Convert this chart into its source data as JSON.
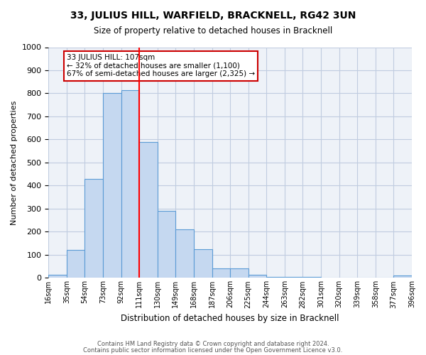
{
  "title": "33, JULIUS HILL, WARFIELD, BRACKNELL, RG42 3UN",
  "subtitle": "Size of property relative to detached houses in Bracknell",
  "xlabel": "Distribution of detached houses by size in Bracknell",
  "ylabel": "Number of detached properties",
  "bin_labels": [
    "16sqm",
    "35sqm",
    "54sqm",
    "73sqm",
    "92sqm",
    "111sqm",
    "130sqm",
    "149sqm",
    "168sqm",
    "187sqm",
    "206sqm",
    "225sqm",
    "244sqm",
    "263sqm",
    "282sqm",
    "301sqm",
    "320sqm",
    "339sqm",
    "358sqm",
    "377sqm",
    "396sqm"
  ],
  "bar_values": [
    15,
    120,
    430,
    800,
    815,
    590,
    290,
    210,
    125,
    40,
    40,
    15,
    5,
    4,
    3,
    2,
    1,
    1,
    0,
    10
  ],
  "bar_color": "#c5d8f0",
  "bar_edge_color": "#5b9bd5",
  "vline_color": "red",
  "ylim": [
    0,
    1000
  ],
  "yticks": [
    0,
    100,
    200,
    300,
    400,
    500,
    600,
    700,
    800,
    900,
    1000
  ],
  "annotation_title": "33 JULIUS HILL: 107sqm",
  "annotation_line1": "← 32% of detached houses are smaller (1,100)",
  "annotation_line2": "67% of semi-detached houses are larger (2,325) →",
  "annotation_box_color": "white",
  "annotation_box_edge_color": "#cc0000",
  "footer1": "Contains HM Land Registry data © Crown copyright and database right 2024.",
  "footer2": "Contains public sector information licensed under the Open Government Licence v3.0.",
  "plot_bg_color": "#eef2f8",
  "fig_bg_color": "white",
  "grid_color": "#c0cce0"
}
